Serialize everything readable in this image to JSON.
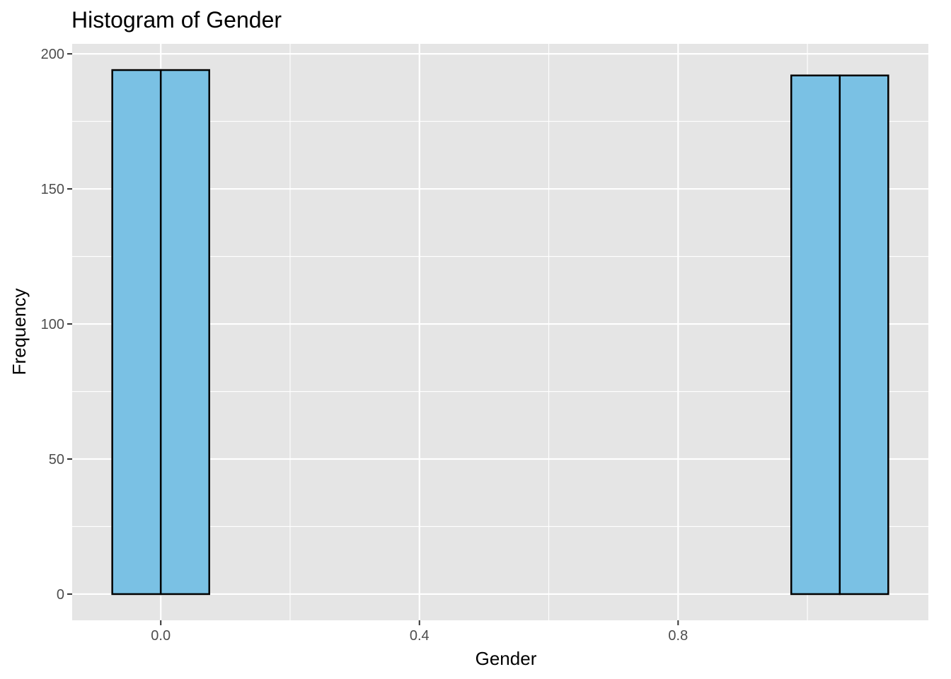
{
  "chart_data": {
    "type": "bar",
    "title": "Histogram of Gender",
    "xlabel": "Gender",
    "ylabel": "Frequency",
    "bin_width": 0.075,
    "bins": [
      {
        "x_start": -0.075,
        "x_end": 0.0,
        "count": 194
      },
      {
        "x_start": 0.0,
        "x_end": 0.075,
        "count": 194
      },
      {
        "x_start": 0.075,
        "x_end": 0.15,
        "count": 0
      },
      {
        "x_start": 0.15,
        "x_end": 0.225,
        "count": 0
      },
      {
        "x_start": 0.225,
        "x_end": 0.3,
        "count": 0
      },
      {
        "x_start": 0.3,
        "x_end": 0.375,
        "count": 0
      },
      {
        "x_start": 0.375,
        "x_end": 0.45,
        "count": 0
      },
      {
        "x_start": 0.45,
        "x_end": 0.525,
        "count": 0
      },
      {
        "x_start": 0.525,
        "x_end": 0.6,
        "count": 0
      },
      {
        "x_start": 0.6,
        "x_end": 0.675,
        "count": 0
      },
      {
        "x_start": 0.675,
        "x_end": 0.75,
        "count": 0
      },
      {
        "x_start": 0.75,
        "x_end": 0.825,
        "count": 0
      },
      {
        "x_start": 0.825,
        "x_end": 0.9,
        "count": 0
      },
      {
        "x_start": 0.9,
        "x_end": 0.975,
        "count": 0
      },
      {
        "x_start": 0.975,
        "x_end": 1.05,
        "count": 192
      },
      {
        "x_start": 1.05,
        "x_end": 1.125,
        "count": 192
      }
    ],
    "xlim": [
      -0.137,
      1.187
    ],
    "ylim": [
      -9.7,
      203.7
    ],
    "x_ticks": [
      0.0,
      0.4,
      0.8
    ],
    "x_tick_labels": [
      "0.0",
      "0.4",
      "0.8"
    ],
    "y_ticks": [
      0,
      50,
      100,
      150,
      200
    ],
    "y_tick_labels": [
      "0",
      "50",
      "100",
      "150",
      "200"
    ],
    "grid": true,
    "colors": {
      "bar_fill": "#7ac1e4",
      "bar_outline": "#000000",
      "panel_background": "#e5e5e5",
      "grid_major": "#ffffff",
      "tick_text": "#4d4d4d"
    }
  }
}
